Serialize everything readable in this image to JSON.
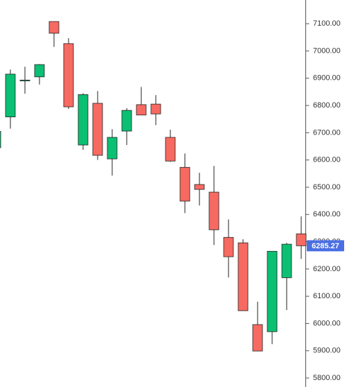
{
  "chart_data": {
    "type": "candlestick",
    "series": [
      {
        "up_color": "#0bbf73",
        "down_color": "#f76a62",
        "open": [
          6645,
          6758,
          6890,
          6905,
          7108,
          7027,
          6655,
          6808,
          6604,
          6706,
          6803,
          6805,
          6683,
          6573,
          6510,
          6482,
          6316,
          6296,
          5996,
          5970,
          6168,
          6329
        ],
        "high": [
          6715,
          6932,
          6942,
          6952,
          7108,
          7047,
          6845,
          6853,
          6713,
          6790,
          6868,
          6838,
          6711,
          6624,
          6553,
          6578,
          6382,
          6309,
          6080,
          6265,
          6296,
          6393
        ],
        "low": [
          6620,
          6715,
          6843,
          6877,
          7015,
          6787,
          6637,
          6600,
          6543,
          6655,
          6765,
          6728,
          6593,
          6405,
          6433,
          6288,
          6169,
          6047,
          5899,
          5924,
          6049,
          6237
        ],
        "close": [
          6705,
          6915,
          6893,
          6950,
          7065,
          6795,
          6840,
          6617,
          6683,
          6782,
          6765,
          6769,
          6596,
          6449,
          6492,
          6344,
          6245,
          6047,
          5899,
          6265,
          6291,
          6285.27
        ]
      }
    ],
    "ylim": [
      5767,
      7187
    ],
    "yticks": [
      {
        "value": 5800,
        "label": "5800.00"
      },
      {
        "value": 5900,
        "label": "5900.00"
      },
      {
        "value": 6000,
        "label": "6000.00"
      },
      {
        "value": 6100,
        "label": "6100.00"
      },
      {
        "value": 6200,
        "label": "6200.00"
      },
      {
        "value": 6300,
        "label": "6300.00"
      },
      {
        "value": 6400,
        "label": "6400.00"
      },
      {
        "value": 6500,
        "label": "6500.00"
      },
      {
        "value": 6600,
        "label": "6600.00"
      },
      {
        "value": 6700,
        "label": "6700.00"
      },
      {
        "value": 6800,
        "label": "6800.00"
      },
      {
        "value": 6900,
        "label": "6900.00"
      },
      {
        "value": 7000,
        "label": "7000.00"
      },
      {
        "value": 7100,
        "label": "7100.00"
      }
    ],
    "last_price": {
      "value": 6285.27,
      "label": "6285.27",
      "color": "#4a6fe3"
    }
  }
}
